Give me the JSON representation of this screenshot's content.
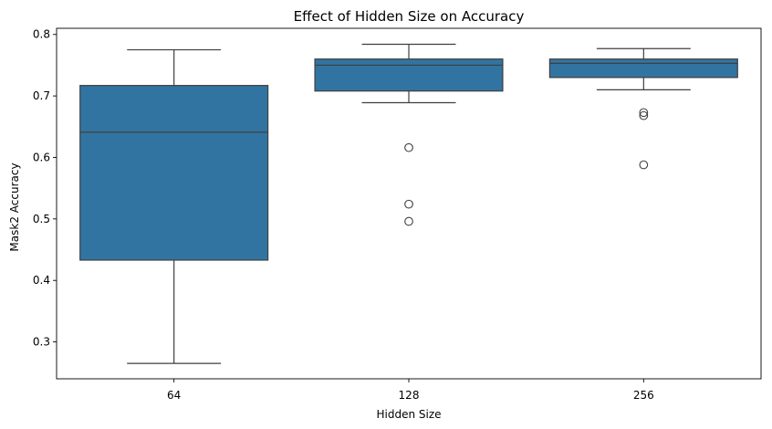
{
  "chart_data": {
    "type": "box",
    "title": "Effect of Hidden Size on Accuracy",
    "xlabel": "Hidden Size",
    "ylabel": "Mask2 Accuracy",
    "ylim": [
      0.24,
      0.81
    ],
    "yticks": [
      "0.3",
      "0.4",
      "0.5",
      "0.6",
      "0.7",
      "0.8"
    ],
    "categories": [
      "64",
      "128",
      "256"
    ],
    "boxes": [
      {
        "category": "64",
        "whisker_low": 0.265,
        "q1": 0.433,
        "median": 0.641,
        "q3": 0.717,
        "whisker_high": 0.775,
        "outliers": []
      },
      {
        "category": "128",
        "whisker_low": 0.689,
        "q1": 0.708,
        "median": 0.75,
        "q3": 0.76,
        "whisker_high": 0.784,
        "outliers": [
          0.616,
          0.524,
          0.496
        ]
      },
      {
        "category": "256",
        "whisker_low": 0.71,
        "q1": 0.73,
        "median": 0.753,
        "q3": 0.76,
        "whisker_high": 0.777,
        "outliers": [
          0.673,
          0.668,
          0.588
        ]
      }
    ],
    "box_color": "#3274a1",
    "line_color": "#3f3f3f",
    "grid": false,
    "legend": "none"
  }
}
